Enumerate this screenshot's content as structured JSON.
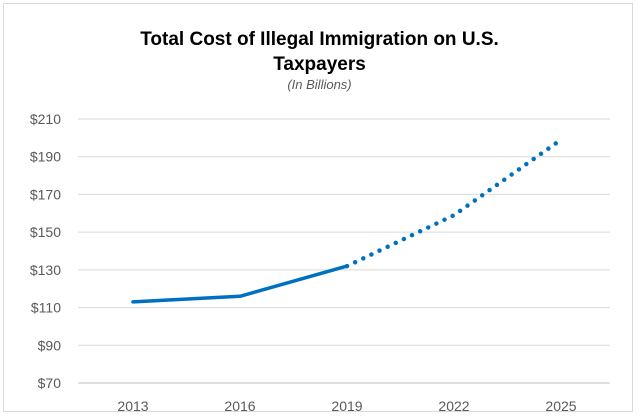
{
  "chart_data": {
    "type": "line",
    "title_line1": "Total Cost of Illegal Immigration on U.S.",
    "title_line2": "Taxpayers",
    "subtitle": "(In Billions)",
    "categories": [
      "2013",
      "2016",
      "2019",
      "2022",
      "2025"
    ],
    "x": [
      2013,
      2016,
      2019,
      2022,
      2025
    ],
    "yticks": [
      "$210",
      "$190",
      "$170",
      "$150",
      "$130",
      "$110",
      "$90",
      "$70"
    ],
    "ylim": [
      70,
      210
    ],
    "grid": true,
    "legend": "none",
    "series": [
      {
        "style": "solid",
        "points": [
          [
            2013,
            113
          ],
          [
            2016,
            116
          ],
          [
            2019,
            132
          ]
        ]
      },
      {
        "style": "dotted",
        "points": [
          [
            2019,
            132
          ],
          [
            2022,
            159
          ],
          [
            2025,
            199
          ]
        ]
      }
    ],
    "colors": {
      "line": "#0070c0",
      "grid": "#d9d9d9",
      "axis": "#bfbfbf"
    }
  }
}
